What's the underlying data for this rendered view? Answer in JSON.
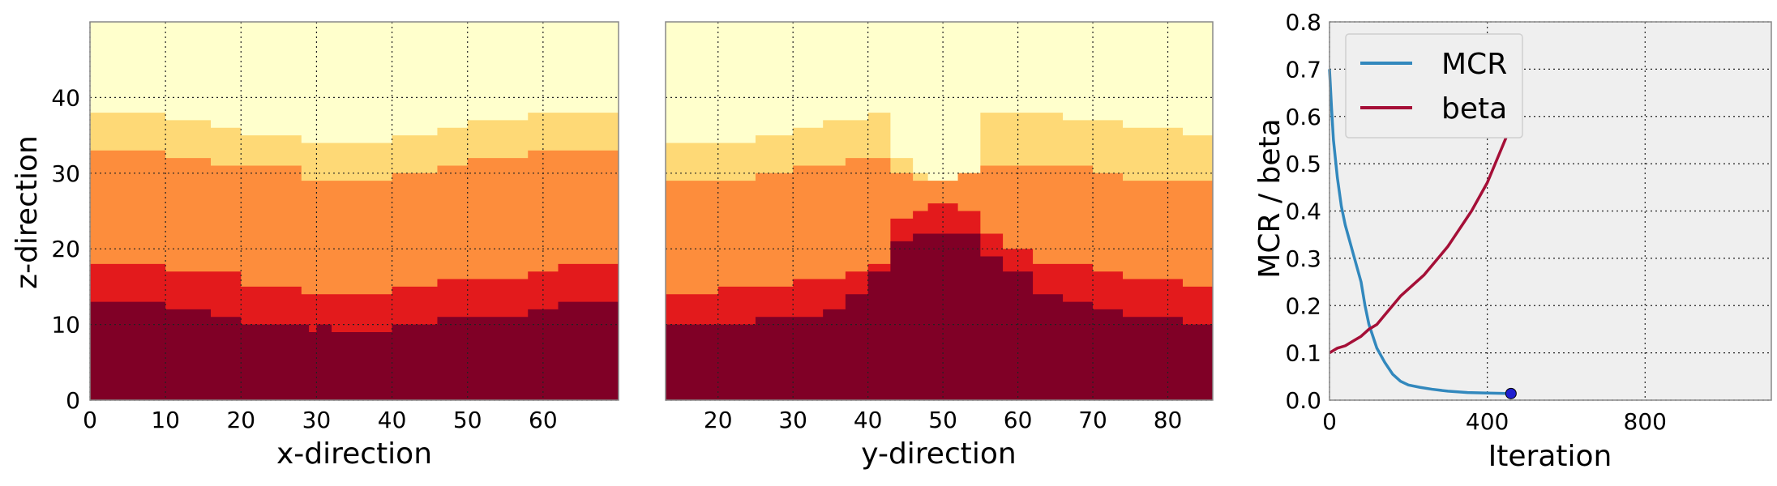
{
  "colors": {
    "level1": "#800026",
    "level2": "#e31a1c",
    "level3": "#fd8d3c",
    "level4": "#fed976",
    "level5": "#ffffcc",
    "mcr": "#3288bd",
    "beta": "#a50f37",
    "marker": "#1f1fd0",
    "axes_bg": "#efefef"
  },
  "chart_data": [
    {
      "type": "heatmap",
      "xlabel": "x-direction",
      "ylabel": "z-direction",
      "xlim": [
        0,
        70
      ],
      "ylim": [
        0,
        50
      ],
      "xticks": [
        "0",
        "10",
        "20",
        "30",
        "40",
        "50",
        "60"
      ],
      "yticks": [
        "0",
        "10",
        "20",
        "30",
        "40"
      ],
      "grid": true,
      "layers_top_z": {
        "x": [
          0,
          10,
          16,
          20,
          28,
          29,
          30,
          32,
          40,
          46,
          50,
          58,
          62,
          70
        ],
        "level1": [
          13,
          12,
          11,
          10,
          10,
          9,
          10,
          9,
          10,
          11,
          11,
          12,
          13,
          13
        ],
        "level2": [
          18,
          17,
          17,
          15,
          14,
          14,
          14,
          14,
          15,
          16,
          16,
          17,
          18,
          18
        ],
        "level3": [
          33,
          32,
          31,
          31,
          29,
          29,
          29,
          29,
          30,
          31,
          32,
          33,
          33,
          33
        ],
        "level4": [
          38,
          37,
          36,
          35,
          34,
          34,
          34,
          34,
          35,
          36,
          37,
          38,
          38,
          38
        ]
      }
    },
    {
      "type": "heatmap",
      "xlabel": "y-direction",
      "ylabel": "",
      "xlim": [
        13,
        86
      ],
      "ylim": [
        0,
        50
      ],
      "xticks": [
        "20",
        "30",
        "40",
        "50",
        "60",
        "70",
        "80"
      ],
      "grid": true,
      "layers_top_z": {
        "x": [
          13,
          20,
          25,
          30,
          34,
          37,
          40,
          43,
          46,
          48,
          50,
          52,
          55,
          58,
          62,
          66,
          70,
          74,
          78,
          82,
          86
        ],
        "level1": [
          10,
          10,
          11,
          11,
          12,
          14,
          17,
          21,
          22,
          22,
          22,
          22,
          19,
          17,
          14,
          13,
          12,
          11,
          11,
          10,
          10
        ],
        "level2": [
          14,
          15,
          15,
          16,
          16,
          17,
          18,
          24,
          25,
          26,
          26,
          25,
          22,
          20,
          18,
          18,
          17,
          16,
          16,
          15,
          15
        ],
        "level3": [
          29,
          29,
          30,
          31,
          31,
          32,
          32,
          30,
          29,
          29,
          29,
          30,
          31,
          31,
          31,
          31,
          30,
          29,
          29,
          29,
          29
        ],
        "level4": [
          34,
          34,
          35,
          36,
          37,
          37,
          38,
          32,
          30,
          29,
          29,
          30,
          38,
          38,
          38,
          37,
          37,
          36,
          36,
          35,
          35
        ]
      }
    },
    {
      "type": "line",
      "xlabel": "Iteration",
      "ylabel": "MCR / beta",
      "xlim": [
        0,
        1120
      ],
      "ylim": [
        0,
        0.8
      ],
      "xticks": [
        "0",
        "400",
        "800"
      ],
      "yticks": [
        "0.0",
        "0.1",
        "0.2",
        "0.3",
        "0.4",
        "0.5",
        "0.6",
        "0.7",
        "0.8"
      ],
      "grid": true,
      "legend": "top-left",
      "series": [
        {
          "name": "MCR",
          "x": [
            0,
            5,
            10,
            20,
            30,
            40,
            50,
            60,
            70,
            80,
            90,
            100,
            120,
            140,
            160,
            180,
            200,
            230,
            260,
            300,
            350,
            400,
            460
          ],
          "y": [
            0.7,
            0.62,
            0.55,
            0.47,
            0.41,
            0.37,
            0.34,
            0.31,
            0.28,
            0.25,
            0.2,
            0.16,
            0.11,
            0.08,
            0.055,
            0.04,
            0.032,
            0.027,
            0.023,
            0.019,
            0.016,
            0.015,
            0.014
          ]
        },
        {
          "name": "beta",
          "x": [
            0,
            20,
            40,
            60,
            80,
            100,
            120,
            140,
            160,
            180,
            200,
            220,
            240,
            260,
            280,
            300,
            320,
            340,
            360,
            380,
            400,
            420,
            440,
            460
          ],
          "y": [
            0.1,
            0.11,
            0.115,
            0.125,
            0.135,
            0.15,
            0.16,
            0.18,
            0.2,
            0.22,
            0.235,
            0.25,
            0.265,
            0.285,
            0.305,
            0.325,
            0.35,
            0.375,
            0.4,
            0.43,
            0.46,
            0.5,
            0.54,
            0.58
          ]
        }
      ],
      "final_point": {
        "x": 460,
        "y": 0.014
      }
    }
  ]
}
